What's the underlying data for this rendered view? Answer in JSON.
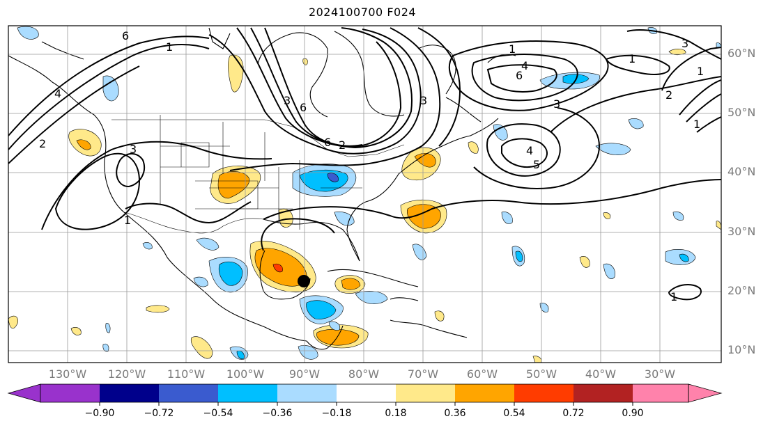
{
  "title": "2024100700 F024",
  "map": {
    "lon_labels": [
      "130°W",
      "120°W",
      "110°W",
      "100°W",
      "90°W",
      "80°W",
      "70°W",
      "60°W",
      "50°W",
      "40°W",
      "30°W"
    ],
    "lat_labels": [
      "60°N",
      "50°N",
      "40°N",
      "30°N",
      "20°N",
      "10°N"
    ],
    "contour_labels": [
      "6",
      "1",
      "2",
      "4",
      "3",
      "1",
      "6",
      "3",
      "6",
      "2",
      "3",
      "1",
      "4",
      "6",
      "3",
      "1",
      "2",
      "3",
      "1",
      "5",
      "4",
      "1",
      "1"
    ],
    "storm_marker": "hurricane-center"
  },
  "colorbar": {
    "ticks": [
      "−0.90",
      "−0.72",
      "−0.54",
      "−0.36",
      "−0.18",
      "0.18",
      "0.36",
      "0.54",
      "0.72",
      "0.90"
    ],
    "colors": [
      "#9932cc",
      "#00008b",
      "#3a5bcf",
      "#00bfff",
      "#aadcff",
      "#ffffff",
      "#ffe98a",
      "#ffa500",
      "#ff3c00",
      "#b22222",
      "#ff82ab"
    ]
  }
}
